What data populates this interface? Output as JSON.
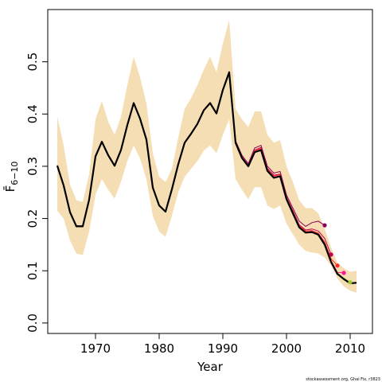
{
  "chart_data": {
    "type": "line",
    "title": "",
    "xlabel": "Year",
    "ylabel": "F̄",
    "ylabel_subscript": "6−10",
    "xlim": [
      1962.5,
      2013.5
    ],
    "ylim": [
      -0.02,
      0.6
    ],
    "x_ticks": [
      1970,
      1980,
      1990,
      2000,
      2010
    ],
    "y_ticks": [
      0.0,
      0.1,
      0.2,
      0.3,
      0.4,
      0.5
    ],
    "x_tick_labels": [
      "1970",
      "1980",
      "1990",
      "2000",
      "2010"
    ],
    "y_tick_labels": [
      "0.0",
      "0.1",
      "0.2",
      "0.3",
      "0.4",
      "0.5"
    ],
    "credit": "stockassessment.org, Ghal Fix, r3823",
    "colors": {
      "band": "#f5deb3",
      "main": "#000000",
      "retro": [
        "#8b0057",
        "#c00050",
        "#ff2a2a",
        "#ff1493",
        "#9acd32",
        "#8b008b"
      ]
    },
    "band": {
      "x": [
        1964,
        1965,
        1966,
        1967,
        1968,
        1969,
        1970,
        1971,
        1972,
        1973,
        1974,
        1975,
        1976,
        1977,
        1978,
        1979,
        1980,
        1981,
        1982,
        1983,
        1984,
        1985,
        1986,
        1987,
        1988,
        1989,
        1990,
        1991,
        1992,
        1993,
        1994,
        1995,
        1996,
        1997,
        1998,
        1999,
        2000,
        2001,
        2002,
        2003,
        2004,
        2005,
        2006,
        2007,
        2008,
        2009,
        2010,
        2011
      ],
      "upper": [
        0.395,
        0.34,
        0.265,
        0.235,
        0.232,
        0.285,
        0.39,
        0.425,
        0.385,
        0.36,
        0.395,
        0.455,
        0.51,
        0.47,
        0.42,
        0.325,
        0.28,
        0.27,
        0.295,
        0.355,
        0.41,
        0.43,
        0.455,
        0.485,
        0.51,
        0.48,
        0.535,
        0.58,
        0.41,
        0.39,
        0.375,
        0.405,
        0.405,
        0.36,
        0.345,
        0.35,
        0.3,
        0.27,
        0.235,
        0.22,
        0.22,
        0.21,
        0.18,
        0.145,
        0.115,
        0.105,
        0.098,
        0.1
      ],
      "lower": [
        0.215,
        0.2,
        0.158,
        0.133,
        0.13,
        0.175,
        0.245,
        0.275,
        0.255,
        0.238,
        0.27,
        0.31,
        0.34,
        0.315,
        0.275,
        0.205,
        0.175,
        0.165,
        0.205,
        0.25,
        0.28,
        0.295,
        0.31,
        0.33,
        0.34,
        0.325,
        0.36,
        0.39,
        0.275,
        0.255,
        0.237,
        0.26,
        0.26,
        0.225,
        0.218,
        0.225,
        0.19,
        0.17,
        0.15,
        0.138,
        0.135,
        0.133,
        0.125,
        0.11,
        0.085,
        0.07,
        0.062,
        0.058
      ]
    },
    "series": [
      {
        "x": [
          1964,
          1965,
          1966,
          1967,
          1968,
          1969,
          1970,
          1971,
          1972,
          1973,
          1974,
          1975,
          1976,
          1977,
          1978,
          1979,
          1980,
          1981,
          1982,
          1983,
          1984,
          1985,
          1986,
          1987,
          1988,
          1989,
          1990,
          1991,
          1992,
          1993,
          1994,
          1995,
          1996,
          1997,
          1998,
          1999,
          2000,
          2001,
          2002,
          2003,
          2004,
          2005,
          2006
        ],
        "values": [
          0.302,
          0.264,
          0.213,
          0.186,
          0.186,
          0.237,
          0.32,
          0.348,
          0.322,
          0.302,
          0.332,
          0.38,
          0.422,
          0.392,
          0.352,
          0.26,
          0.226,
          0.214,
          0.257,
          0.305,
          0.346,
          0.363,
          0.382,
          0.408,
          0.422,
          0.402,
          0.447,
          0.481,
          0.349,
          0.321,
          0.305,
          0.335,
          0.34,
          0.3,
          0.287,
          0.29,
          0.245,
          0.22,
          0.195,
          0.185,
          0.192,
          0.195,
          0.187
        ],
        "end_point": true
      },
      {
        "x": [
          1964,
          1965,
          1966,
          1967,
          1968,
          1969,
          1970,
          1971,
          1972,
          1973,
          1974,
          1975,
          1976,
          1977,
          1978,
          1979,
          1980,
          1981,
          1982,
          1983,
          1984,
          1985,
          1986,
          1987,
          1988,
          1989,
          1990,
          1991,
          1992,
          1993,
          1994,
          1995,
          1996,
          1997,
          1998,
          1999,
          2000,
          2001,
          2002,
          2003,
          2004,
          2005,
          2006,
          2007
        ],
        "values": [
          0.301,
          0.263,
          0.212,
          0.185,
          0.185,
          0.236,
          0.319,
          0.347,
          0.321,
          0.301,
          0.331,
          0.379,
          0.421,
          0.391,
          0.351,
          0.259,
          0.225,
          0.213,
          0.256,
          0.304,
          0.345,
          0.362,
          0.381,
          0.407,
          0.421,
          0.401,
          0.446,
          0.48,
          0.347,
          0.318,
          0.302,
          0.331,
          0.336,
          0.296,
          0.283,
          0.285,
          0.241,
          0.215,
          0.188,
          0.178,
          0.18,
          0.176,
          0.162,
          0.131
        ],
        "end_point": true
      },
      {
        "x": [
          1964,
          1965,
          1966,
          1967,
          1968,
          1969,
          1970,
          1971,
          1972,
          1973,
          1974,
          1975,
          1976,
          1977,
          1978,
          1979,
          1980,
          1981,
          1982,
          1983,
          1984,
          1985,
          1986,
          1987,
          1988,
          1989,
          1990,
          1991,
          1992,
          1993,
          1994,
          1995,
          1996,
          1997,
          1998,
          1999,
          2000,
          2001,
          2002,
          2003,
          2004,
          2005,
          2006,
          2007,
          2008
        ],
        "values": [
          0.301,
          0.263,
          0.212,
          0.185,
          0.185,
          0.236,
          0.319,
          0.347,
          0.321,
          0.301,
          0.331,
          0.379,
          0.421,
          0.391,
          0.351,
          0.259,
          0.225,
          0.213,
          0.256,
          0.304,
          0.345,
          0.362,
          0.381,
          0.407,
          0.421,
          0.401,
          0.446,
          0.48,
          0.346,
          0.317,
          0.301,
          0.33,
          0.334,
          0.294,
          0.281,
          0.284,
          0.24,
          0.213,
          0.186,
          0.176,
          0.177,
          0.172,
          0.155,
          0.123,
          0.11
        ],
        "end_point": true
      },
      {
        "x": [
          1964,
          1965,
          1966,
          1967,
          1968,
          1969,
          1970,
          1971,
          1972,
          1973,
          1974,
          1975,
          1976,
          1977,
          1978,
          1979,
          1980,
          1981,
          1982,
          1983,
          1984,
          1985,
          1986,
          1987,
          1988,
          1989,
          1990,
          1991,
          1992,
          1993,
          1994,
          1995,
          1996,
          1997,
          1998,
          1999,
          2000,
          2001,
          2002,
          2003,
          2004,
          2005,
          2006,
          2007,
          2008,
          2009
        ],
        "values": [
          0.301,
          0.263,
          0.212,
          0.185,
          0.185,
          0.236,
          0.319,
          0.347,
          0.321,
          0.301,
          0.331,
          0.379,
          0.421,
          0.391,
          0.351,
          0.259,
          0.225,
          0.213,
          0.256,
          0.304,
          0.345,
          0.362,
          0.381,
          0.407,
          0.421,
          0.401,
          0.446,
          0.48,
          0.345,
          0.316,
          0.3,
          0.328,
          0.332,
          0.292,
          0.279,
          0.282,
          0.238,
          0.211,
          0.184,
          0.174,
          0.175,
          0.17,
          0.152,
          0.119,
          0.097,
          0.096
        ],
        "end_point": true
      },
      {
        "x": [
          1964,
          1965,
          1966,
          1967,
          1968,
          1969,
          1970,
          1971,
          1972,
          1973,
          1974,
          1975,
          1976,
          1977,
          1978,
          1979,
          1980,
          1981,
          1982,
          1983,
          1984,
          1985,
          1986,
          1987,
          1988,
          1989,
          1990,
          1991,
          1992,
          1993,
          1994,
          1995,
          1996,
          1997,
          1998,
          1999,
          2000,
          2001,
          2002,
          2003,
          2004,
          2005,
          2006,
          2007,
          2008,
          2009,
          2010
        ],
        "values": [
          0.301,
          0.263,
          0.212,
          0.185,
          0.185,
          0.236,
          0.319,
          0.347,
          0.321,
          0.301,
          0.331,
          0.379,
          0.421,
          0.391,
          0.351,
          0.259,
          0.225,
          0.213,
          0.256,
          0.304,
          0.345,
          0.362,
          0.381,
          0.407,
          0.421,
          0.401,
          0.446,
          0.48,
          0.345,
          0.316,
          0.3,
          0.327,
          0.331,
          0.291,
          0.278,
          0.281,
          0.237,
          0.21,
          0.183,
          0.173,
          0.174,
          0.169,
          0.151,
          0.118,
          0.096,
          0.086,
          0.078
        ],
        "end_point": true
      },
      {
        "x": [
          1964,
          1965,
          1966,
          1967,
          1968,
          1969,
          1970,
          1971,
          1972,
          1973,
          1974,
          1975,
          1976,
          1977,
          1978,
          1979,
          1980,
          1981,
          1982,
          1983,
          1984,
          1985,
          1986,
          1987,
          1988,
          1989,
          1990,
          1991,
          1992,
          1993,
          1994,
          1995,
          1996,
          1997,
          1998,
          1999,
          2000,
          2001,
          2002,
          2003,
          2004,
          2005,
          2006,
          2007,
          2008,
          2009,
          2010,
          2011
        ],
        "values": [
          0.301,
          0.263,
          0.212,
          0.185,
          0.185,
          0.236,
          0.319,
          0.347,
          0.321,
          0.301,
          0.331,
          0.379,
          0.421,
          0.391,
          0.351,
          0.259,
          0.225,
          0.213,
          0.256,
          0.304,
          0.345,
          0.362,
          0.381,
          0.407,
          0.421,
          0.401,
          0.446,
          0.48,
          0.345,
          0.316,
          0.3,
          0.327,
          0.331,
          0.291,
          0.278,
          0.281,
          0.237,
          0.21,
          0.183,
          0.173,
          0.174,
          0.169,
          0.15,
          0.117,
          0.094,
          0.084,
          0.076,
          0.077
        ],
        "end_point": false
      }
    ]
  }
}
